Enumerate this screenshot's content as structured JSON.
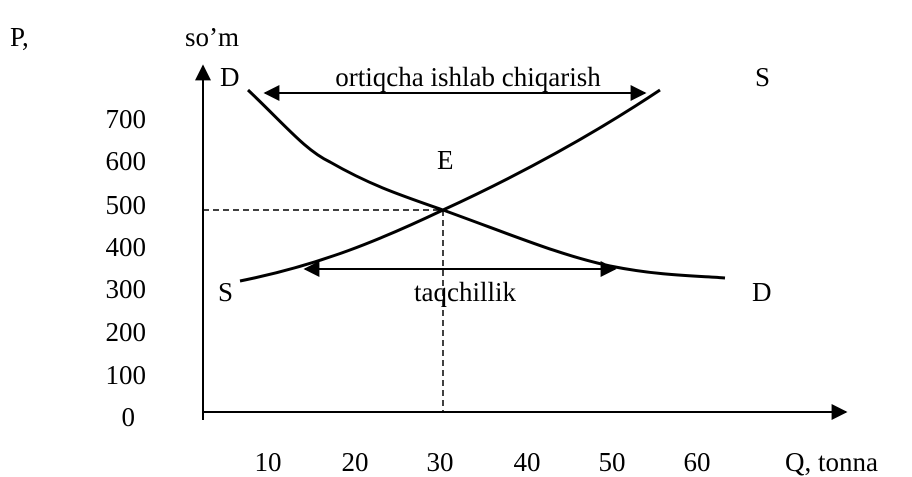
{
  "axes": {
    "y_label_left": "P,",
    "y_label": "so’m",
    "x_label": "Q, tonna",
    "y_ticks": [
      "700",
      "600",
      "500",
      "400",
      "300",
      "200",
      "100",
      "0"
    ],
    "x_ticks": [
      "10",
      "20",
      "30",
      "40",
      "50",
      "60"
    ]
  },
  "labels": {
    "demand_top": "D",
    "supply_top": "S",
    "surplus": "ortiqcha ishlab chiqarish",
    "equilibrium": "E",
    "supply_bottom": "S",
    "shortage": "taqchillik",
    "demand_bottom": "D"
  }
}
